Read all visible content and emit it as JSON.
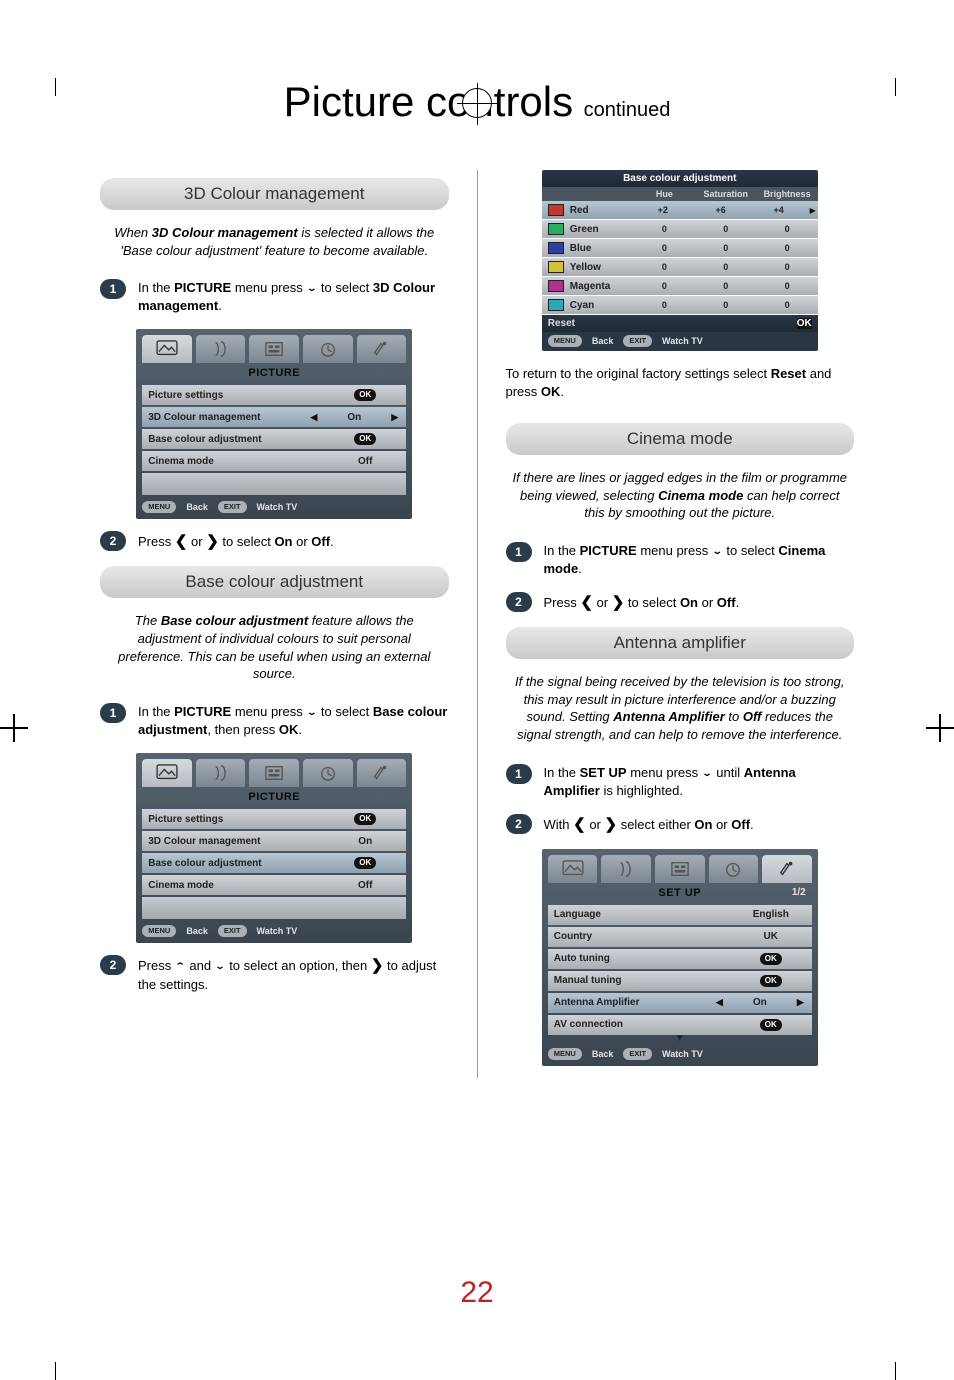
{
  "title_main": "Picture controls",
  "title_sub": "continued",
  "page_number": "22",
  "sec_3d": {
    "header": "3D Colour management",
    "intro_pre": "When ",
    "intro_bold": "3D Colour management",
    "intro_post": " is selected it allows the 'Base colour adjustment' feature to become available.",
    "step1_a": "In the ",
    "step1_b": "PICTURE",
    "step1_c": " menu press ",
    "step1_d": " to select ",
    "step1_e": "3D Colour management",
    "step1_f": ".",
    "step2_a": "Press ",
    "step2_b": " or ",
    "step2_c": " to select ",
    "step2_on": "On",
    "step2_or": " or ",
    "step2_off": "Off",
    "step2_end": "."
  },
  "osd_picture": {
    "title": "PICTURE",
    "rows": {
      "picture_settings": "Picture settings",
      "colour_mgmt": "3D Colour management",
      "base_adj": "Base colour adjustment",
      "cinema": "Cinema mode"
    },
    "vals": {
      "on": "On",
      "off": "Off",
      "ok": "OK"
    },
    "footer_menu": "MENU",
    "footer_back": "Back",
    "footer_exit": "EXIT",
    "footer_watch": "Watch TV"
  },
  "sec_base": {
    "header": "Base colour adjustment",
    "intro_a": "The ",
    "intro_b": "Base colour adjustment",
    "intro_c": " feature allows the adjustment of individual colours to suit personal preference. This can be useful when using an external source.",
    "step1_a": "In the ",
    "step1_b": "PICTURE",
    "step1_c": " menu press ",
    "step1_d": " to select ",
    "step1_e": "Base colour adjustment",
    "step1_f": ", then press ",
    "step1_g": "OK",
    "step1_h": ".",
    "step2_a": "Press ",
    "step2_b": " and ",
    "step2_c": " to select an option, then ",
    "step2_d": " to adjust the settings."
  },
  "colour_table": {
    "title": "Base colour adjustment",
    "col_hue": "Hue",
    "col_sat": "Saturation",
    "col_bri": "Brightness",
    "rows": [
      {
        "name": "Red",
        "swatch": "#c0392b",
        "hue": "+2",
        "sat": "+6",
        "bri": "+4",
        "sel": true
      },
      {
        "name": "Green",
        "swatch": "#27ae60",
        "hue": "0",
        "sat": "0",
        "bri": "0"
      },
      {
        "name": "Blue",
        "swatch": "#2c3e9e",
        "hue": "0",
        "sat": "0",
        "bri": "0"
      },
      {
        "name": "Yellow",
        "swatch": "#d4c13a",
        "hue": "0",
        "sat": "0",
        "bri": "0"
      },
      {
        "name": "Magenta",
        "swatch": "#b0308f",
        "hue": "0",
        "sat": "0",
        "bri": "0"
      },
      {
        "name": "Cyan",
        "swatch": "#2aa8b3",
        "hue": "0",
        "sat": "0",
        "bri": "0"
      }
    ],
    "reset": "Reset",
    "ok": "OK",
    "footer_menu": "MENU",
    "footer_back": "Back",
    "footer_exit": "EXIT",
    "footer_watch": "Watch TV",
    "note_a": "To return to the original factory settings select ",
    "note_b": "Reset",
    "note_c": " and press ",
    "note_d": "OK",
    "note_e": "."
  },
  "sec_cinema": {
    "header": "Cinema mode",
    "intro_a": "If there are lines or jagged edges in the film or programme being viewed, selecting ",
    "intro_b": "Cinema mode",
    "intro_c": " can help correct this by smoothing out the picture.",
    "step1_a": "In the ",
    "step1_b": "PICTURE",
    "step1_c": " menu press ",
    "step1_d": " to select ",
    "step1_e": "Cinema mode",
    "step1_f": ".",
    "step2_a": "Press ",
    "step2_b": " or ",
    "step2_c": " to select ",
    "step2_on": "On",
    "step2_or": " or ",
    "step2_off": "Off",
    "step2_end": "."
  },
  "sec_antenna": {
    "header": "Antenna amplifier",
    "intro_a": "If the signal being received by the television is too strong, this may result in picture interference and/or a buzzing sound. Setting ",
    "intro_b": "Antenna Amplifier",
    "intro_c": " to ",
    "intro_d": "Off",
    "intro_e": " reduces the signal strength, and can help to remove the interference.",
    "step1_a": "In the ",
    "step1_b": "SET UP",
    "step1_c": " menu press ",
    "step1_d": " until ",
    "step1_e": "Antenna Amplifier",
    "step1_f": " is highlighted.",
    "step2_a": "With ",
    "step2_b": " or ",
    "step2_c": " select either ",
    "step2_on": "On",
    "step2_or": " or ",
    "step2_off": "Off",
    "step2_end": "."
  },
  "osd_setup": {
    "title": "SET UP",
    "page": "1/2",
    "rows": {
      "language": "Language",
      "country": "Country",
      "auto": "Auto tuning",
      "manual": "Manual tuning",
      "antenna": "Antenna Amplifier",
      "av": "AV connection"
    },
    "vals": {
      "english": "English",
      "uk": "UK",
      "on": "On",
      "ok": "OK"
    },
    "footer_menu": "MENU",
    "footer_back": "Back",
    "footer_exit": "EXIT",
    "footer_watch": "Watch TV"
  }
}
